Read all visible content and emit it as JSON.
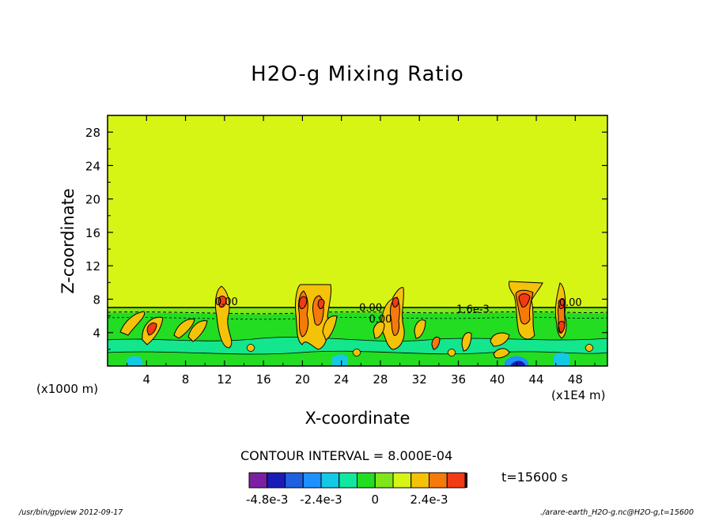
{
  "chart_data": {
    "type": "heatmap",
    "title": "H2O-g Mixing Ratio",
    "xlabel": "X-coordinate",
    "ylabel": "Z-coordinate",
    "x_unit_left": "(x1000 m)",
    "x_unit_right": "(x1E4 m)",
    "xlim": [
      0,
      51.3
    ],
    "ylim": [
      0,
      30
    ],
    "xticks": [
      "4",
      "8",
      "12",
      "16",
      "20",
      "24",
      "28",
      "32",
      "36",
      "40",
      "44",
      "48"
    ],
    "xtick_values": [
      4,
      8,
      12,
      16,
      20,
      24,
      28,
      32,
      36,
      40,
      44,
      48
    ],
    "yticks": [
      "4",
      "8",
      "12",
      "16",
      "20",
      "24",
      "28"
    ],
    "ytick_values": [
      4,
      8,
      12,
      16,
      20,
      24,
      28
    ],
    "contour_interval": "CONTOUR INTERVAL = 8.000E-04",
    "time_label": "t=15600 s",
    "colorbar": {
      "tick_labels": [
        "-4.8e-3",
        "-2.4e-3",
        "0",
        "2.4e-3"
      ],
      "tick_values": [
        -0.0048,
        -0.0024,
        0,
        0.0024
      ],
      "levels": [
        -0.0056,
        -0.0048,
        -0.004,
        -0.0032,
        -0.0024,
        -0.0016,
        -0.0008,
        0,
        0.0008,
        0.0016,
        0.0024,
        0.0032,
        0.004
      ],
      "colors": [
        "#7b1fa2",
        "#1a1ab8",
        "#1f5fe0",
        "#1e90ff",
        "#13c9e6",
        "#10e8a0",
        "#22dd22",
        "#7fe619",
        "#d6f514",
        "#f5c20a",
        "#f57a0a",
        "#f23a14"
      ]
    },
    "background_value_color": "#d6f514",
    "contour_labels": [
      "0.00",
      "0.00",
      "0.00",
      "0.00",
      "1.6e-3"
    ],
    "contour_label_x": [
      12.2,
      27.0,
      28.0,
      47.5,
      37.5
    ],
    "contour_label_y": [
      7.3,
      6.6,
      5.2,
      7.2,
      6.4
    ]
  },
  "footer": {
    "left": "/usr/bin/gpview   2012-09-17",
    "right": "./arare-earth_H2O-g.nc@H2O-g,t=15600"
  }
}
